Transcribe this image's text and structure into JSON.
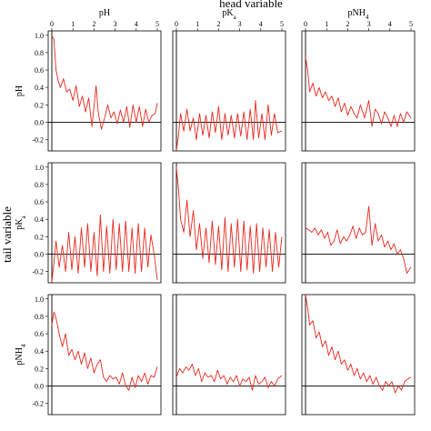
{
  "figure": {
    "top_label": "head variable",
    "side_label": "tail variable",
    "line_color": "#e8281e"
  },
  "chart_data": {
    "type": "line",
    "layout": "3x3 grid of correlation plots",
    "x_ticks": [
      "0",
      "1",
      "2",
      "3",
      "4",
      "5"
    ],
    "y_ticks": [
      "1.0",
      "0.8",
      "0.6",
      "0.4",
      "0.2",
      "0.0",
      "-0.2"
    ],
    "xlim": [
      0,
      5
    ],
    "ylim": [
      -0.33,
      1.05
    ],
    "reference_line_y": 0,
    "columns": [
      {
        "name": "pH",
        "base": "pH",
        "sub": ""
      },
      {
        "name": "pKa",
        "base": "pK",
        "sub": "a"
      },
      {
        "name": "pNH4",
        "base": "pNH",
        "sub": "4"
      }
    ],
    "rows": [
      {
        "name": "pH",
        "base": "pH",
        "sub": ""
      },
      {
        "name": "pKa",
        "base": "pK",
        "sub": "a"
      },
      {
        "name": "pNH4",
        "base": "pNH",
        "sub": "4"
      }
    ],
    "panels": [
      {
        "row": 0,
        "col": 0,
        "x": [
          0,
          0.1,
          0.2,
          0.3,
          0.4,
          0.55,
          0.7,
          0.85,
          1.0,
          1.15,
          1.3,
          1.45,
          1.6,
          1.75,
          1.9,
          2.0,
          2.1,
          2.2,
          2.35,
          2.5,
          2.65,
          2.8,
          2.95,
          3.1,
          3.25,
          3.4,
          3.55,
          3.7,
          3.85,
          4.0,
          4.15,
          4.3,
          4.45,
          4.6,
          4.75,
          4.9,
          5.0
        ],
        "y": [
          1.0,
          0.95,
          0.6,
          0.48,
          0.4,
          0.5,
          0.35,
          0.38,
          0.25,
          0.42,
          0.18,
          0.3,
          0.12,
          0.28,
          -0.05,
          0.18,
          0.42,
          0.12,
          -0.08,
          0.05,
          0.2,
          0.05,
          0.12,
          -0.02,
          0.14,
          0.0,
          0.18,
          -0.06,
          0.2,
          0.0,
          0.18,
          -0.05,
          0.15,
          0.0,
          0.08,
          0.1,
          0.22
        ]
      },
      {
        "row": 0,
        "col": 1,
        "x": [
          0,
          0.1,
          0.2,
          0.35,
          0.5,
          0.65,
          0.8,
          0.95,
          1.1,
          1.25,
          1.4,
          1.55,
          1.7,
          1.85,
          2.0,
          2.15,
          2.3,
          2.45,
          2.6,
          2.75,
          2.9,
          3.05,
          3.2,
          3.35,
          3.5,
          3.65,
          3.75,
          3.9,
          4.05,
          4.2,
          4.35,
          4.5,
          4.65,
          4.8,
          5.0
        ],
        "y": [
          -0.32,
          -0.15,
          0.1,
          -0.1,
          0.15,
          -0.1,
          0.05,
          -0.2,
          0.1,
          -0.15,
          0.08,
          -0.18,
          0.12,
          -0.12,
          0.18,
          -0.2,
          0.1,
          -0.15,
          0.08,
          -0.18,
          0.1,
          -0.16,
          0.12,
          -0.2,
          0.15,
          -0.2,
          0.25,
          -0.18,
          0.1,
          -0.2,
          0.2,
          -0.15,
          0.1,
          -0.12,
          -0.1
        ]
      },
      {
        "row": 0,
        "col": 2,
        "x": [
          0,
          0.1,
          0.2,
          0.35,
          0.5,
          0.65,
          0.8,
          0.95,
          1.1,
          1.25,
          1.4,
          1.55,
          1.7,
          1.85,
          2.0,
          2.15,
          2.3,
          2.45,
          2.6,
          2.8,
          3.0,
          3.15,
          3.3,
          3.45,
          3.6,
          3.75,
          3.9,
          4.05,
          4.2,
          4.35,
          4.5,
          4.65,
          4.8,
          5.0
        ],
        "y": [
          0.75,
          0.6,
          0.35,
          0.45,
          0.3,
          0.4,
          0.28,
          0.35,
          0.25,
          0.3,
          0.18,
          0.28,
          0.12,
          0.22,
          0.08,
          0.18,
          0.1,
          0.05,
          0.2,
          0.05,
          0.25,
          -0.05,
          0.15,
          0.1,
          -0.02,
          0.12,
          0.05,
          -0.05,
          0.08,
          -0.05,
          0.1,
          0.0,
          0.12,
          0.05
        ]
      },
      {
        "row": 1,
        "col": 0,
        "x": [
          0,
          0.1,
          0.2,
          0.35,
          0.5,
          0.65,
          0.8,
          0.95,
          1.1,
          1.25,
          1.4,
          1.55,
          1.7,
          1.85,
          2.0,
          2.15,
          2.3,
          2.45,
          2.6,
          2.75,
          2.9,
          3.05,
          3.2,
          3.35,
          3.5,
          3.65,
          3.8,
          3.95,
          4.1,
          4.25,
          4.4,
          4.55,
          4.7,
          4.85,
          5.0
        ],
        "y": [
          -0.32,
          -0.1,
          0.15,
          -0.15,
          0.1,
          -0.2,
          0.25,
          -0.18,
          0.2,
          -0.22,
          0.3,
          -0.15,
          0.35,
          -0.2,
          0.25,
          -0.25,
          0.45,
          -0.2,
          0.32,
          -0.22,
          0.4,
          -0.18,
          0.35,
          -0.2,
          0.38,
          -0.2,
          0.3,
          -0.22,
          0.35,
          -0.2,
          0.3,
          -0.15,
          0.22,
          0.0,
          -0.3
        ]
      },
      {
        "row": 1,
        "col": 1,
        "x": [
          0,
          0.1,
          0.2,
          0.35,
          0.5,
          0.65,
          0.8,
          0.95,
          1.1,
          1.25,
          1.4,
          1.55,
          1.7,
          1.85,
          2.0,
          2.15,
          2.3,
          2.45,
          2.6,
          2.75,
          2.9,
          3.05,
          3.2,
          3.35,
          3.5,
          3.65,
          3.8,
          3.95,
          4.1,
          4.25,
          4.4,
          4.55,
          4.7,
          4.85,
          5.0
        ],
        "y": [
          1.0,
          0.75,
          0.4,
          0.25,
          0.62,
          0.2,
          0.5,
          0.05,
          0.35,
          -0.05,
          0.3,
          -0.1,
          0.38,
          -0.12,
          0.32,
          -0.18,
          0.42,
          -0.2,
          0.35,
          -0.15,
          0.4,
          -0.2,
          0.38,
          -0.18,
          0.32,
          -0.22,
          0.35,
          -0.2,
          0.3,
          -0.15,
          0.28,
          -0.2,
          0.25,
          -0.15,
          0.2
        ]
      },
      {
        "row": 1,
        "col": 2,
        "x": [
          0,
          0.15,
          0.3,
          0.45,
          0.6,
          0.75,
          0.9,
          1.05,
          1.2,
          1.35,
          1.5,
          1.65,
          1.8,
          1.95,
          2.1,
          2.25,
          2.4,
          2.55,
          2.7,
          2.85,
          3.0,
          3.15,
          3.3,
          3.45,
          3.6,
          3.75,
          3.9,
          4.05,
          4.2,
          4.35,
          4.5,
          4.65,
          4.8,
          5.0
        ],
        "y": [
          0.3,
          0.28,
          0.25,
          0.3,
          0.22,
          0.28,
          0.18,
          0.25,
          0.1,
          0.15,
          0.28,
          0.12,
          0.2,
          0.15,
          0.22,
          0.32,
          0.18,
          0.3,
          0.22,
          0.25,
          0.55,
          0.1,
          0.35,
          0.15,
          0.22,
          0.08,
          0.15,
          0.05,
          0.12,
          0.0,
          0.05,
          -0.05,
          -0.22,
          -0.15
        ]
      },
      {
        "row": 2,
        "col": 0,
        "x": [
          0,
          0.1,
          0.2,
          0.35,
          0.5,
          0.65,
          0.8,
          0.95,
          1.1,
          1.25,
          1.4,
          1.55,
          1.7,
          1.85,
          2.0,
          2.15,
          2.3,
          2.45,
          2.6,
          2.75,
          2.9,
          3.05,
          3.2,
          3.35,
          3.5,
          3.65,
          3.8,
          3.95,
          4.1,
          4.25,
          4.4,
          4.55,
          4.7,
          4.85,
          5.0
        ],
        "y": [
          0.7,
          0.85,
          0.78,
          0.6,
          0.45,
          0.6,
          0.35,
          0.42,
          0.3,
          0.4,
          0.25,
          0.38,
          0.2,
          0.32,
          0.15,
          0.25,
          0.3,
          0.1,
          0.05,
          0.12,
          0.08,
          0.1,
          0.02,
          0.15,
          0.0,
          -0.05,
          0.1,
          -0.02,
          0.12,
          0.05,
          0.15,
          0.02,
          0.12,
          0.1,
          0.22
        ]
      },
      {
        "row": 2,
        "col": 1,
        "x": [
          0,
          0.15,
          0.3,
          0.45,
          0.6,
          0.75,
          0.9,
          1.05,
          1.2,
          1.35,
          1.5,
          1.65,
          1.8,
          1.95,
          2.1,
          2.25,
          2.4,
          2.55,
          2.7,
          2.85,
          3.0,
          3.15,
          3.3,
          3.45,
          3.6,
          3.75,
          3.9,
          4.05,
          4.2,
          4.35,
          4.5,
          4.65,
          4.8,
          5.0
        ],
        "y": [
          0.1,
          0.2,
          0.15,
          0.22,
          0.18,
          0.25,
          0.12,
          0.2,
          0.05,
          0.15,
          0.1,
          0.12,
          0.05,
          0.18,
          0.08,
          0.12,
          0.02,
          0.1,
          0.05,
          0.12,
          0.0,
          0.08,
          0.05,
          0.1,
          -0.05,
          0.12,
          0.02,
          0.05,
          0.1,
          -0.02,
          0.05,
          0.0,
          0.08,
          0.12
        ]
      },
      {
        "row": 2,
        "col": 2,
        "x": [
          0,
          0.1,
          0.2,
          0.35,
          0.5,
          0.65,
          0.8,
          0.95,
          1.1,
          1.25,
          1.4,
          1.55,
          1.7,
          1.85,
          2.0,
          2.15,
          2.3,
          2.45,
          2.6,
          2.75,
          2.9,
          3.05,
          3.2,
          3.35,
          3.5,
          3.65,
          3.8,
          3.95,
          4.1,
          4.25,
          4.4,
          4.55,
          4.7,
          4.85,
          5.0
        ],
        "y": [
          1.05,
          0.9,
          0.7,
          0.75,
          0.55,
          0.62,
          0.45,
          0.52,
          0.35,
          0.45,
          0.3,
          0.4,
          0.25,
          0.3,
          0.18,
          0.25,
          0.12,
          0.2,
          0.08,
          0.15,
          0.05,
          0.12,
          0.02,
          0.1,
          0.0,
          -0.05,
          0.05,
          0.0,
          0.05,
          -0.08,
          0.0,
          -0.05,
          0.05,
          0.08,
          0.1
        ]
      }
    ]
  }
}
